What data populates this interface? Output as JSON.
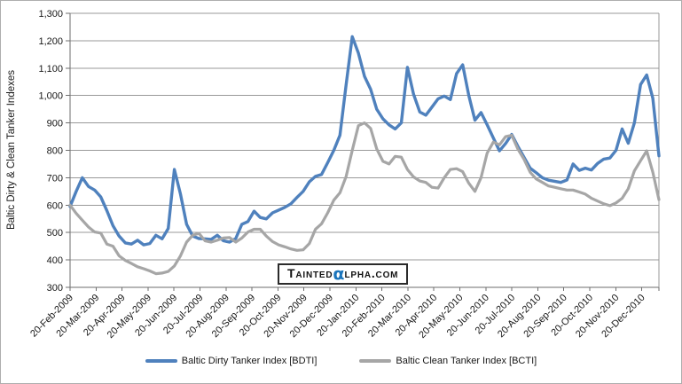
{
  "y_axis": {
    "title": "Baltic Dirty & Clean Tanker Indexes"
  },
  "watermark": {
    "part1": "Tainted",
    "alpha": "α",
    "part2": "lpha.com",
    "alpha_color": "#1b75bc"
  },
  "legend": {
    "items": [
      {
        "label": "Baltic Dirty Tanker Index [BDTI]",
        "color": "#4F81BD"
      },
      {
        "label": "Baltic Clean Tanker Index [BCTI]",
        "color": "#A6A6A6"
      }
    ]
  },
  "chart_data": {
    "type": "line",
    "title": "",
    "xlabel": "",
    "ylabel": "Baltic Dirty & Clean Tanker Indexes",
    "x_start": "20-Feb-2009",
    "x_interval": "weekly",
    "x_tick_labels": [
      "20-Feb-2009",
      "20-Mar-2009",
      "20-Apr-2009",
      "20-May-2009",
      "20-Jun-2009",
      "20-Jul-2009",
      "20-Aug-2009",
      "20-Sep-2009",
      "20-Oct-2009",
      "20-Nov-2009",
      "20-Dec-2009",
      "20-Jan-2010",
      "20-Feb-2010",
      "20-Mar-2010",
      "20-Apr-2010",
      "20-May-2010",
      "20-Jun-2010",
      "20-Jul-2010",
      "20-Aug-2010",
      "20-Sep-2010",
      "20-Oct-2010",
      "20-Nov-2010",
      "20-Dec-2010"
    ],
    "ylim": [
      300,
      1300
    ],
    "ytick_labels": [
      "300",
      "400",
      "500",
      "600",
      "700",
      "800",
      "900",
      "1,000",
      "1,100",
      "1,200",
      "1,300"
    ],
    "grid": "horizontal",
    "legend_position": "bottom",
    "series": [
      {
        "name": "Baltic Dirty Tanker Index [BDTI]",
        "color": "#4F81BD",
        "width": 3.4,
        "values": [
          595,
          650,
          700,
          668,
          655,
          630,
          580,
          525,
          487,
          462,
          458,
          472,
          455,
          460,
          490,
          477,
          515,
          730,
          640,
          530,
          487,
          478,
          477,
          475,
          490,
          470,
          465,
          478,
          530,
          540,
          578,
          555,
          550,
          572,
          582,
          592,
          605,
          628,
          650,
          685,
          705,
          712,
          755,
          800,
          855,
          1040,
          1215,
          1155,
          1070,
          1023,
          950,
          915,
          893,
          878,
          900,
          1103,
          1005,
          940,
          928,
          958,
          988,
          998,
          985,
          1080,
          1112,
          1000,
          910,
          938,
          893,
          845,
          798,
          825,
          858,
          815,
          775,
          735,
          718,
          700,
          691,
          687,
          683,
          692,
          750,
          727,
          735,
          728,
          752,
          768,
          772,
          800,
          878,
          826,
          900,
          1040,
          1075,
          990,
          780
        ]
      },
      {
        "name": "Baltic Clean Tanker Index [BCTI]",
        "color": "#A6A6A6",
        "width": 3.2,
        "values": [
          600,
          570,
          545,
          520,
          502,
          498,
          458,
          450,
          415,
          398,
          387,
          375,
          368,
          360,
          350,
          352,
          358,
          378,
          415,
          465,
          490,
          497,
          470,
          465,
          472,
          480,
          482,
          465,
          480,
          502,
          512,
          512,
          487,
          467,
          455,
          448,
          440,
          435,
          437,
          460,
          512,
          532,
          572,
          618,
          645,
          705,
          800,
          890,
          900,
          880,
          805,
          760,
          750,
          778,
          775,
          730,
          703,
          688,
          683,
          665,
          662,
          700,
          730,
          733,
          722,
          680,
          650,
          700,
          790,
          830,
          820,
          850,
          855,
          805,
          768,
          720,
          695,
          683,
          670,
          665,
          660,
          655,
          655,
          648,
          640,
          625,
          615,
          605,
          598,
          608,
          625,
          660,
          725,
          762,
          798,
          720,
          620
        ]
      }
    ]
  },
  "style": {
    "gridline_color": "#999999",
    "axis_color": "#6e6e6e",
    "tick_text_color": "#161616"
  }
}
